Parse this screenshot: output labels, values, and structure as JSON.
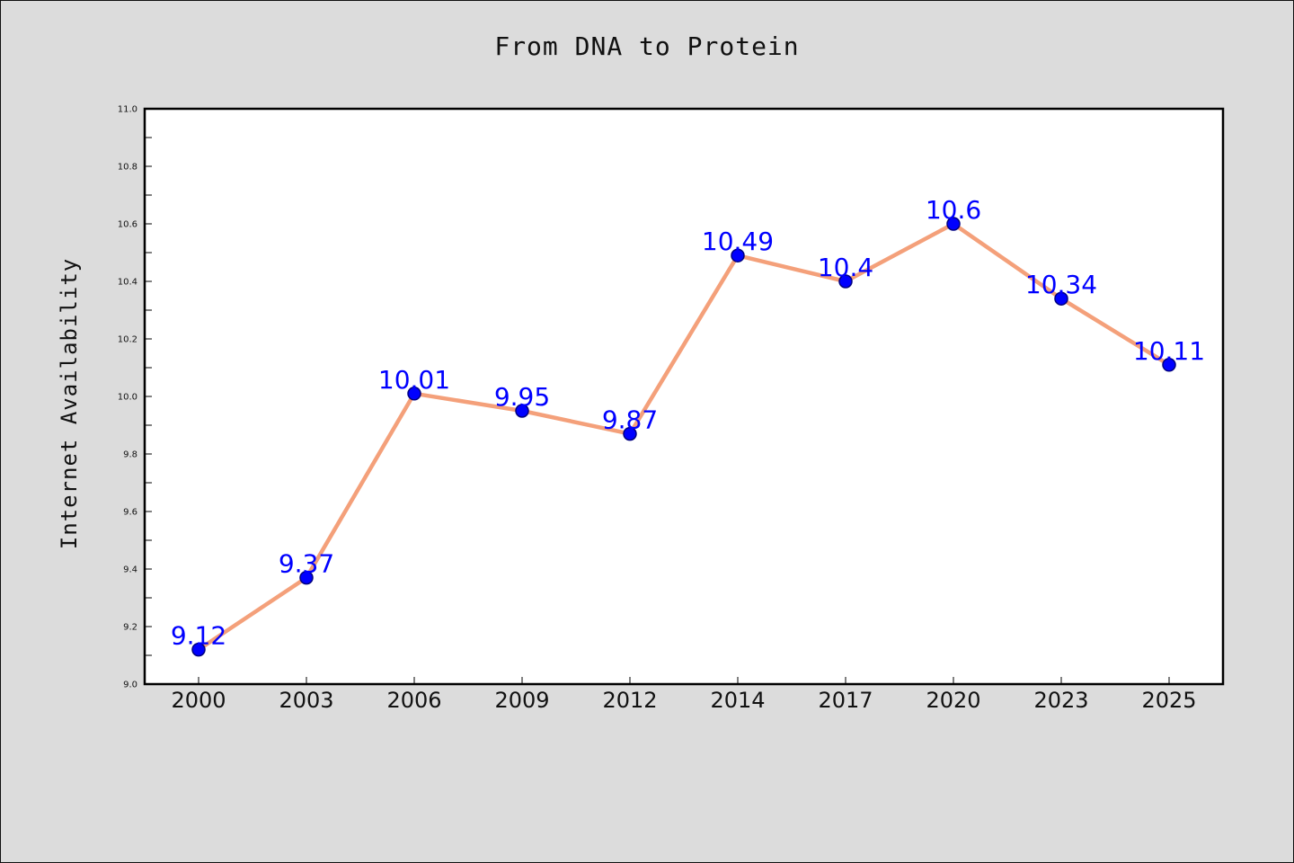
{
  "chart_data": {
    "type": "line",
    "title": "From DNA to Protein",
    "xlabel": "",
    "ylabel": "Internet Availability",
    "categories": [
      "2000",
      "2003",
      "2006",
      "2009",
      "2012",
      "2014",
      "2017",
      "2020",
      "2023",
      "2025"
    ],
    "series": [
      {
        "values": [
          9.12,
          9.37,
          10.01,
          9.95,
          9.87,
          10.49,
          10.4,
          10.6,
          10.34,
          10.11
        ]
      }
    ],
    "data_labels": [
      "9.12",
      "9.37",
      "10.01",
      "9.95",
      "9.87",
      "10.49",
      "10.4",
      "10.6",
      "10.34",
      "10.11"
    ],
    "yticks": [
      "9.0",
      "9.2",
      "9.4",
      "9.6",
      "9.8",
      "10.0",
      "10.2",
      "10.4",
      "10.6",
      "10.8",
      "11.0"
    ],
    "ylim": [
      9.0,
      11.0
    ],
    "grid": false,
    "colors": {
      "line": "#f4a07a",
      "marker_fill": "#0000ff",
      "marker_edge": "#000080",
      "label": "#0000ff",
      "plot_background": "#ffffff",
      "figure_background": "#dcdcdc"
    }
  }
}
